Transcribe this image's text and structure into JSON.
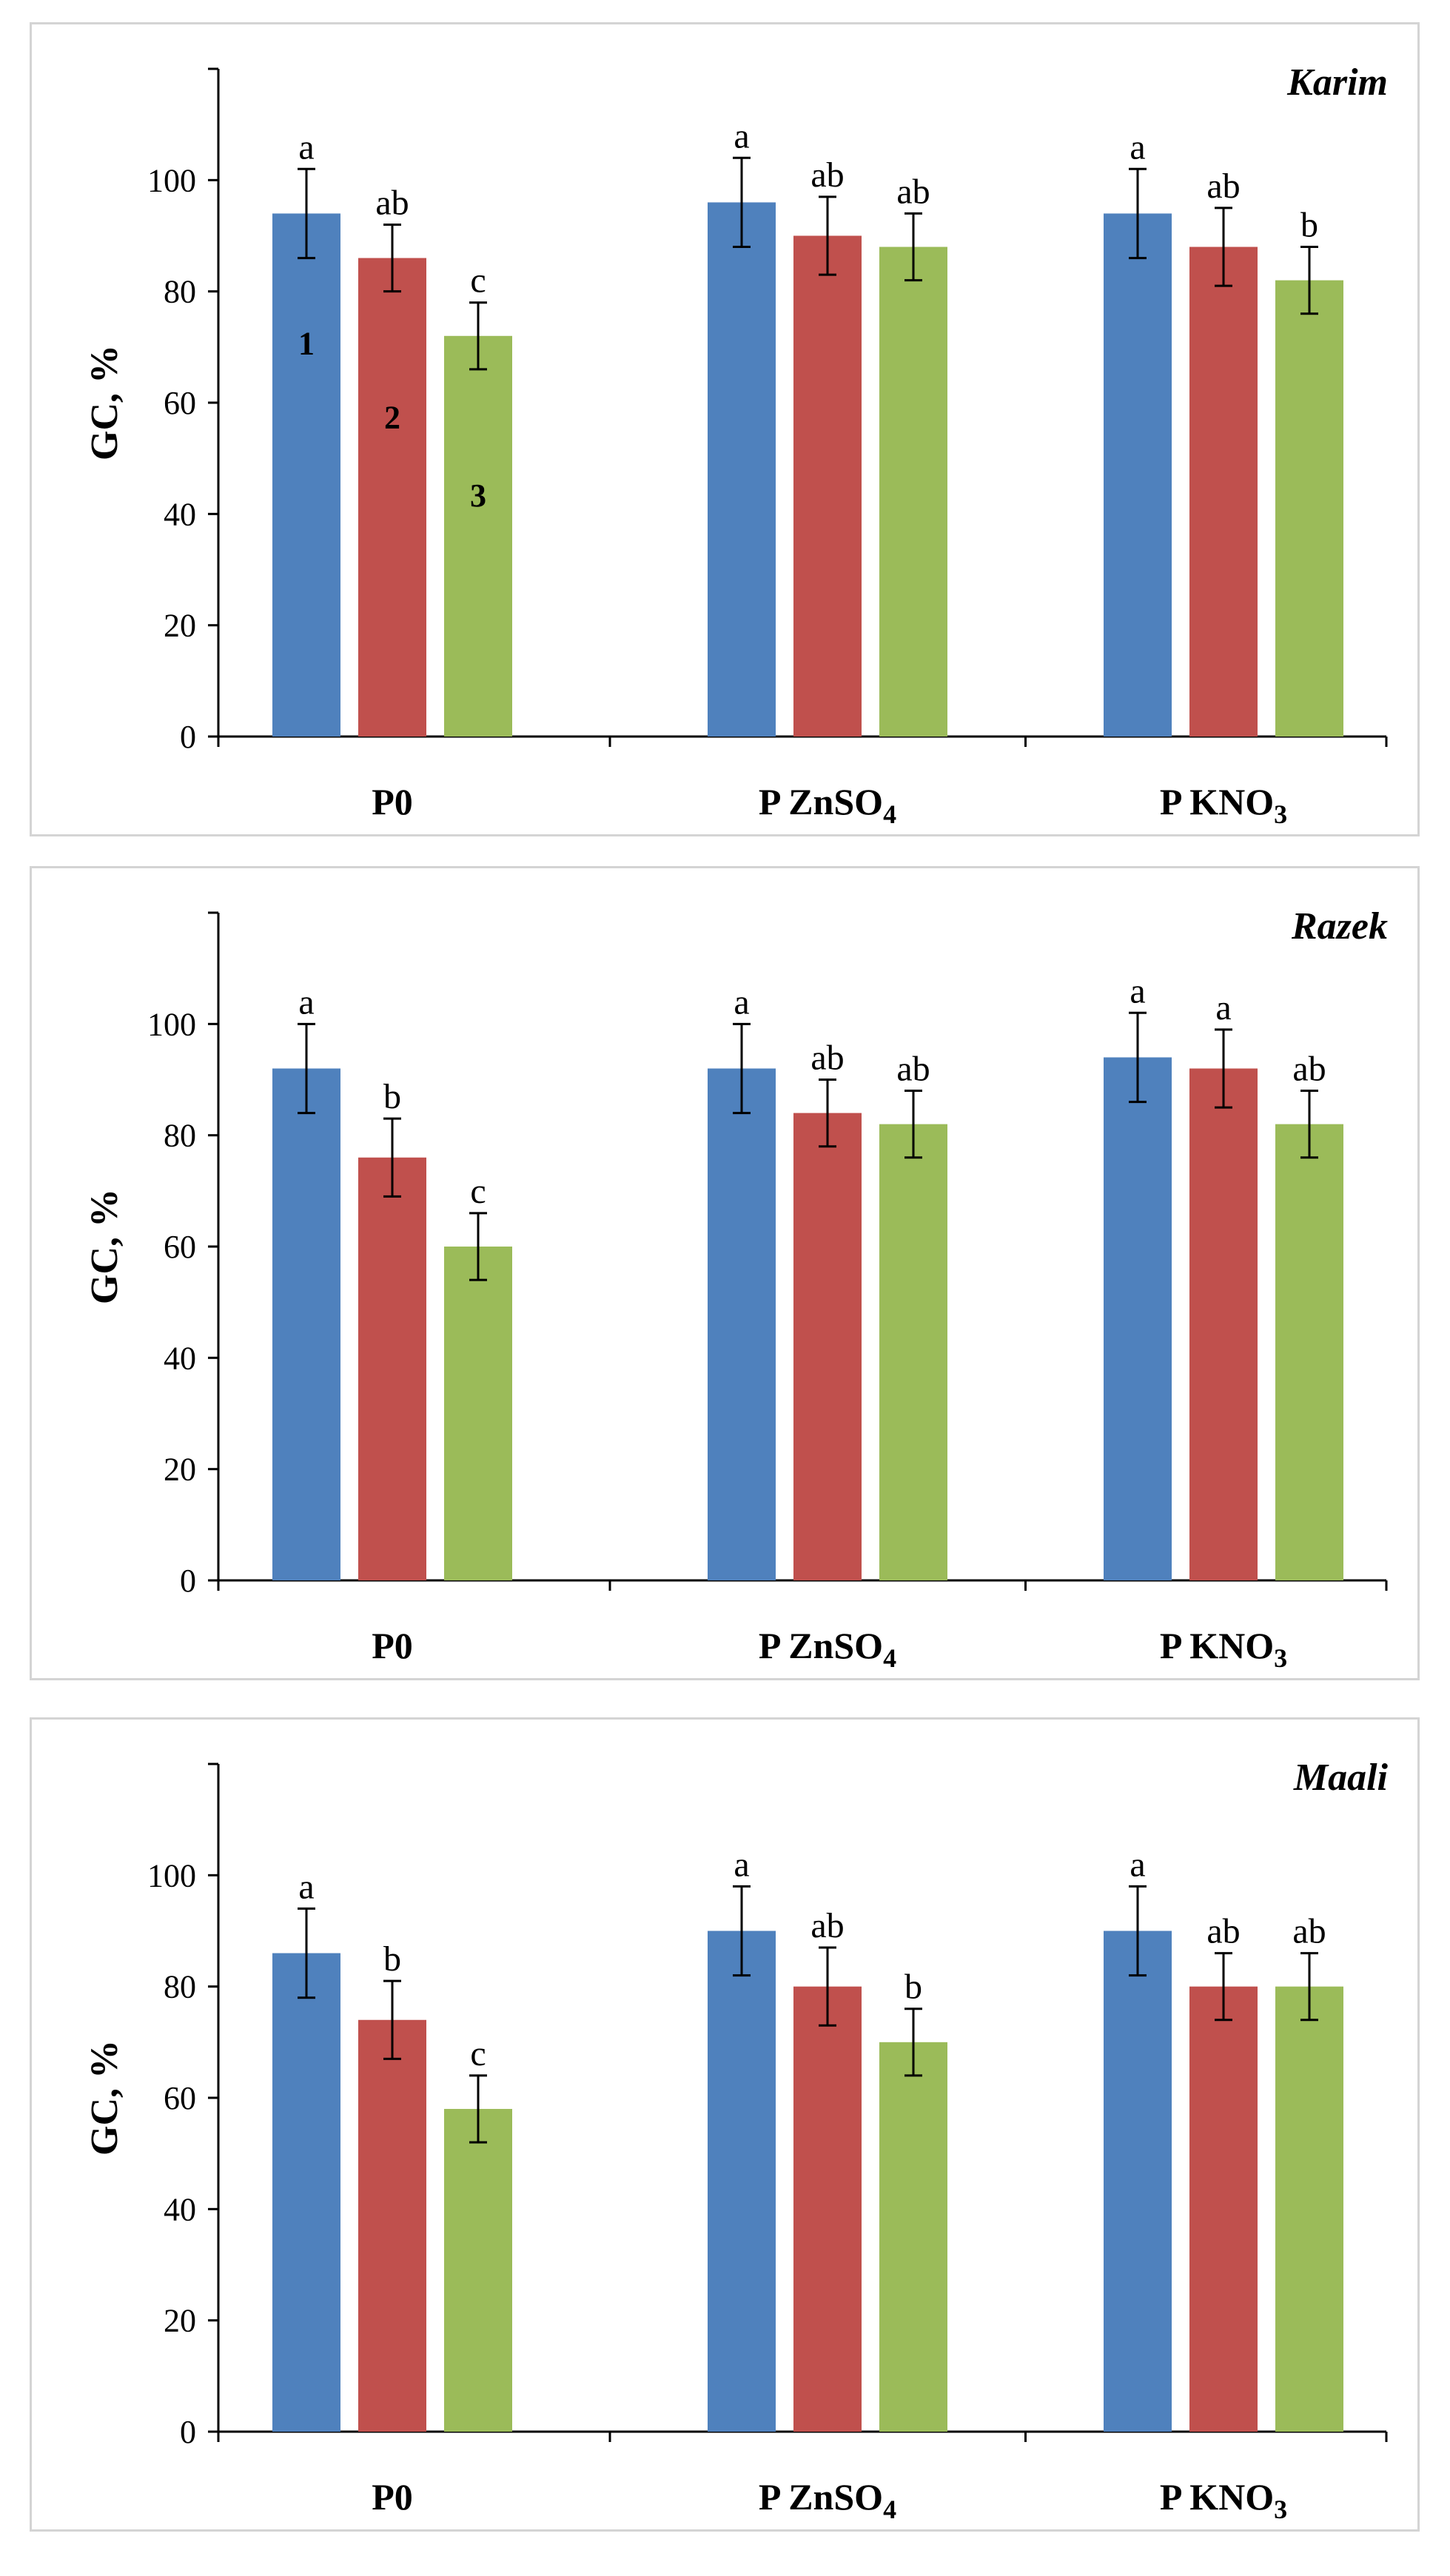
{
  "colors": {
    "series_1": "#4f81bd",
    "series_2": "#c0504d",
    "series_3": "#9bbb59",
    "axis": "#000000",
    "panel_border": "#d4d4d4"
  },
  "chart_data": [
    {
      "type": "bar",
      "title": "Karim",
      "ylabel": "GC, %",
      "xlabel": "",
      "ylim": [
        0,
        120
      ],
      "yticks": [
        0,
        20,
        40,
        60,
        80,
        100
      ],
      "grid": false,
      "categories": [
        {
          "main": "P0",
          "sub": ""
        },
        {
          "main": "P ZnSO",
          "sub": "4"
        },
        {
          "main": "P KNO",
          "sub": "3"
        }
      ],
      "series": [
        {
          "values": [
            94,
            96,
            94
          ],
          "errors": [
            8,
            8,
            8
          ],
          "letters": [
            "a",
            "a",
            "a"
          ],
          "bar_label": "1"
        },
        {
          "values": [
            86,
            90,
            88
          ],
          "errors": [
            6,
            7,
            7
          ],
          "letters": [
            "ab",
            "ab",
            "ab"
          ],
          "bar_label": "2"
        },
        {
          "values": [
            72,
            88,
            82
          ],
          "errors": [
            6,
            6,
            6
          ],
          "letters": [
            "c",
            "ab",
            "b"
          ],
          "bar_label": "3"
        }
      ]
    },
    {
      "type": "bar",
      "title": "Razek",
      "ylabel": "GC, %",
      "xlabel": "",
      "ylim": [
        0,
        120
      ],
      "yticks": [
        0,
        20,
        40,
        60,
        80,
        100
      ],
      "grid": false,
      "categories": [
        {
          "main": "P0",
          "sub": ""
        },
        {
          "main": "P ZnSO",
          "sub": "4"
        },
        {
          "main": "P KNO",
          "sub": "3"
        }
      ],
      "series": [
        {
          "values": [
            92,
            92,
            94
          ],
          "errors": [
            8,
            8,
            8
          ],
          "letters": [
            "a",
            "a",
            "a"
          ],
          "bar_label": ""
        },
        {
          "values": [
            76,
            84,
            92
          ],
          "errors": [
            7,
            6,
            7
          ],
          "letters": [
            "b",
            "ab",
            "a"
          ],
          "bar_label": ""
        },
        {
          "values": [
            60,
            82,
            82
          ],
          "errors": [
            6,
            6,
            6
          ],
          "letters": [
            "c",
            "ab",
            "ab"
          ],
          "bar_label": ""
        }
      ]
    },
    {
      "type": "bar",
      "title": "Maali",
      "ylabel": "GC, %",
      "xlabel": "",
      "ylim": [
        0,
        120
      ],
      "yticks": [
        0,
        20,
        40,
        60,
        80,
        100
      ],
      "grid": false,
      "categories": [
        {
          "main": "P0",
          "sub": ""
        },
        {
          "main": "P ZnSO",
          "sub": "4"
        },
        {
          "main": "P KNO",
          "sub": "3"
        }
      ],
      "series": [
        {
          "values": [
            86,
            90,
            90
          ],
          "errors": [
            8,
            8,
            8
          ],
          "letters": [
            "a",
            "a",
            "a"
          ],
          "bar_label": ""
        },
        {
          "values": [
            74,
            80,
            80
          ],
          "errors": [
            7,
            7,
            6
          ],
          "letters": [
            "b",
            "ab",
            "ab"
          ],
          "bar_label": ""
        },
        {
          "values": [
            58,
            70,
            80
          ],
          "errors": [
            6,
            6,
            6
          ],
          "letters": [
            "c",
            "b",
            "ab"
          ],
          "bar_label": ""
        }
      ]
    }
  ]
}
